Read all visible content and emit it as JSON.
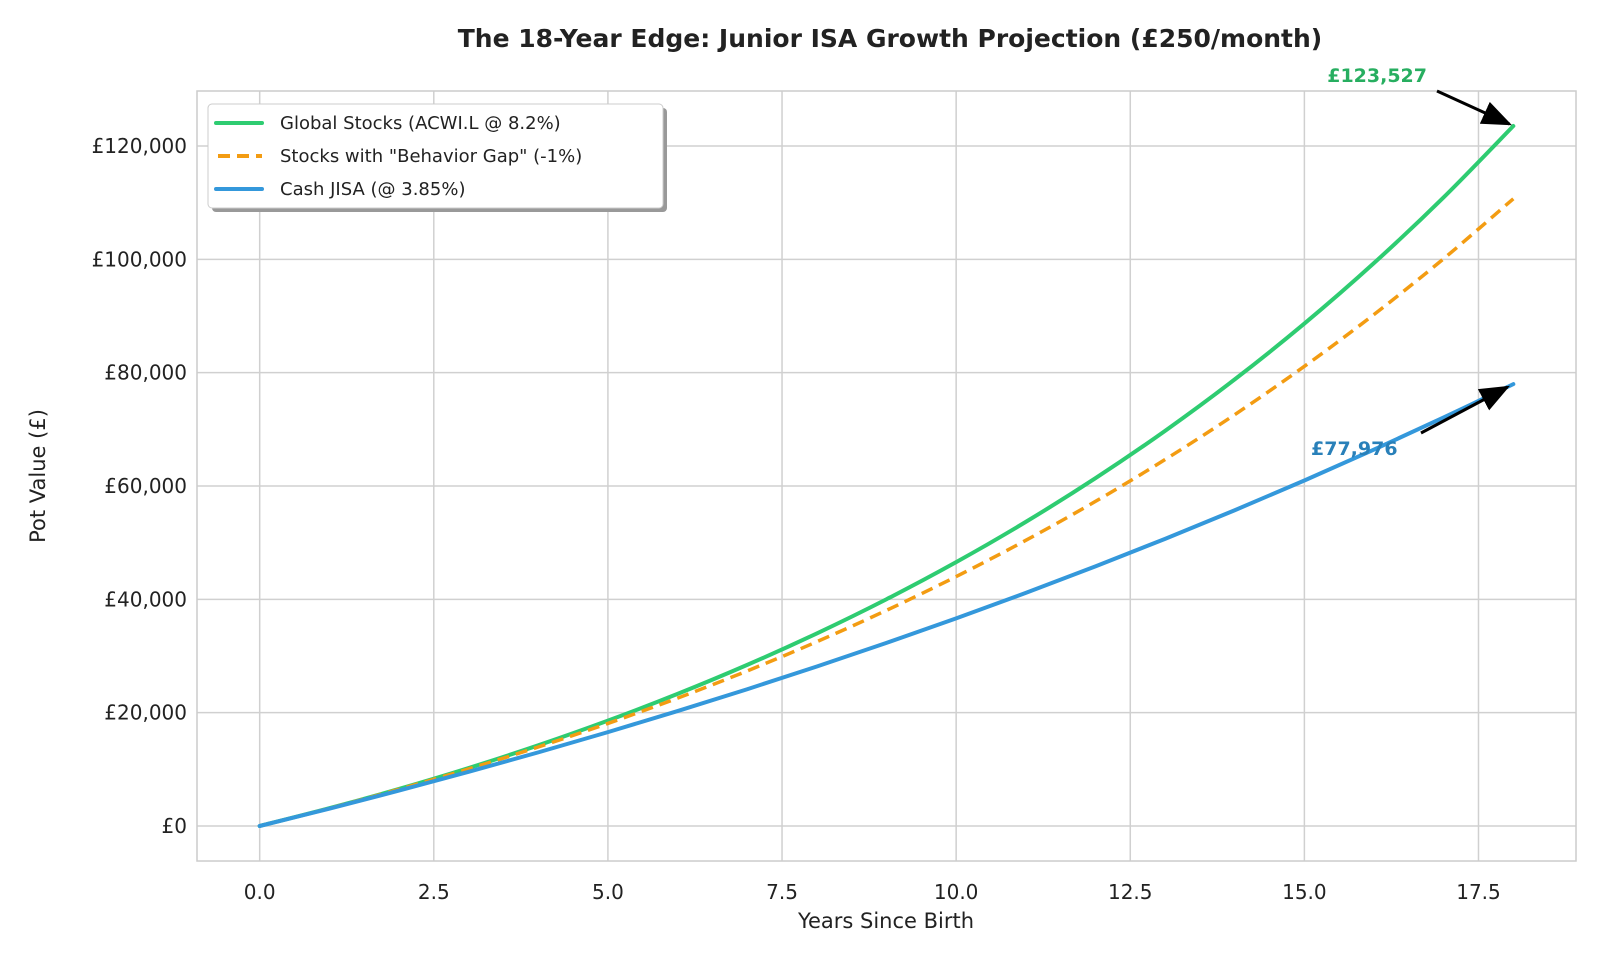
{
  "chart_data": {
    "type": "line",
    "title": "The 18-Year Edge: Junior ISA Growth Projection (£250/month)",
    "xlabel": "Years Since Birth",
    "ylabel": "Pot Value (£)",
    "xlim": [
      -0.9,
      18.9
    ],
    "ylim": [
      -6176,
      129703
    ],
    "grid": true,
    "legend_position": "top-left",
    "x_ticks": [
      "0.0",
      "2.5",
      "5.0",
      "7.5",
      "10.0",
      "12.5",
      "15.0",
      "17.5"
    ],
    "x_tick_values": [
      0,
      2.5,
      5,
      7.5,
      10,
      12.5,
      15,
      17.5
    ],
    "y_ticks": [
      "£0",
      "£20,000",
      "£40,000",
      "£60,000",
      "£80,000",
      "£100,000",
      "£120,000"
    ],
    "y_tick_values": [
      0,
      20000,
      40000,
      60000,
      80000,
      100000,
      120000
    ],
    "x": [
      0,
      1,
      2,
      3,
      4,
      5,
      6,
      7,
      8,
      9,
      10,
      11,
      12,
      13,
      14,
      15,
      16,
      17,
      18
    ],
    "series": [
      {
        "name": "Global Stocks (ACWI.L @ 8.2%)",
        "color": "#2ecc71",
        "style": "solid",
        "values": [
          0,
          3137,
          6540,
          10233,
          14242,
          18592,
          23315,
          28433,
          33990,
          40019,
          46562,
          53667,
          61375,
          69736,
          78812,
          88661,
          99346,
          110944,
          123527
        ]
      },
      {
        "name": "Stocks with \"Behavior Gap\" (-1%)",
        "color": "#f39c12",
        "style": "dashed",
        "values": [
          0,
          3120,
          6472,
          10073,
          13942,
          18099,
          22567,
          27365,
          32522,
          38063,
          44014,
          50410,
          57279,
          64669,
          72592,
          81115,
          90271,
          100112,
          110686
        ]
      },
      {
        "name": "Cash JISA (@ 3.85%)",
        "color": "#3498db",
        "style": "solid",
        "values": [
          0,
          3063,
          6247,
          9555,
          12993,
          16565,
          20277,
          24135,
          28145,
          32310,
          36640,
          41139,
          45815,
          50674,
          55723,
          60970,
          66423,
          72089,
          77976
        ]
      }
    ],
    "annotations": [
      {
        "text": "£123,527",
        "color": "#27ae60",
        "x": 18,
        "y": 123527
      },
      {
        "text": "£77,976",
        "color": "#2980b9",
        "x": 18,
        "y": 77976
      }
    ]
  }
}
